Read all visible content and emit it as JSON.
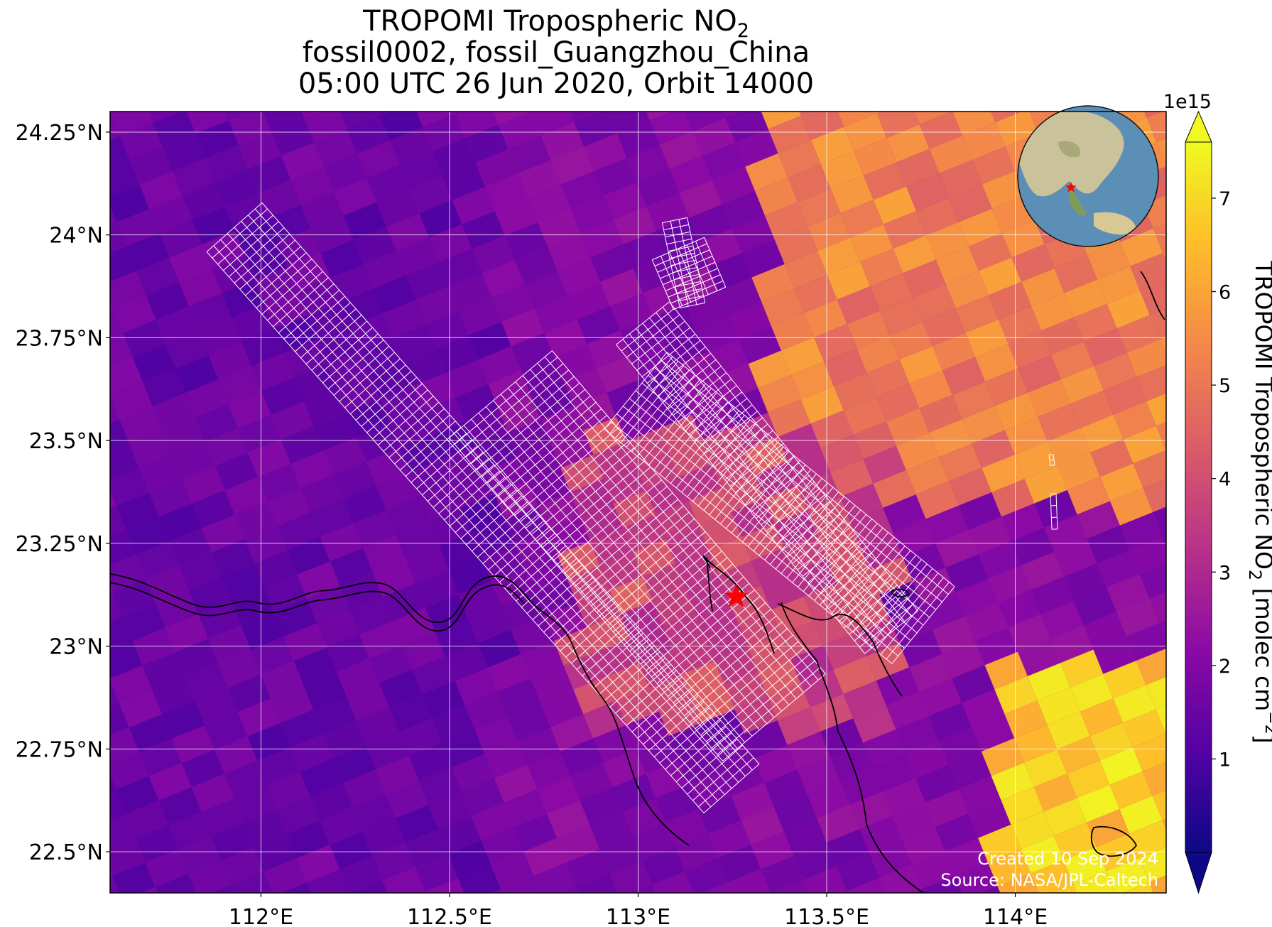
{
  "figure": {
    "title": [
      "TROPOMI Tropospheric NO",
      "fossil0002, fossil_Guangzhou_China",
      "05:00 UTC 26 Jun 2020, Orbit 14000"
    ],
    "title_subscript": "2",
    "credits": [
      "Created 10 Sep 2024",
      "Source: NASA/JPL-Caltech"
    ]
  },
  "colors": {
    "colormap": [
      "#0d0887",
      "#5302a3",
      "#8b0aa5",
      "#b83289",
      "#db5c68",
      "#f48849",
      "#febd2a",
      "#f0f921"
    ],
    "target_marker": "#ff0000",
    "grid": "#ffffff",
    "coastline": "#000000"
  },
  "chart_data": {
    "type": "heatmap",
    "projection": "plate carree",
    "xlim": [
      111.6,
      114.4
    ],
    "ylim": [
      22.4,
      24.3
    ],
    "x_ticks": [
      112,
      112.5,
      113,
      113.5,
      114
    ],
    "x_tick_labels": [
      "112°E",
      "112.5°E",
      "113°E",
      "113.5°E",
      "114°E"
    ],
    "y_ticks": [
      22.5,
      22.75,
      23,
      23.25,
      23.5,
      23.75,
      24,
      24.25
    ],
    "y_tick_labels": [
      "22.5°N",
      "22.75°N",
      "23°N",
      "23.25°N",
      "23.5°N",
      "23.75°N",
      "24°N",
      "24.25°N"
    ],
    "grid": true,
    "colorbar": {
      "label": "TROPOMI Tropospheric NO",
      "label_subscript": "2",
      "label_units": "[molec cm",
      "label_units_sup": "−2",
      "label_end": "]",
      "scale_label": "1e15",
      "vmin": 0,
      "vmax": 7.6,
      "ticks": [
        1,
        2,
        3,
        4,
        5,
        6,
        7
      ],
      "tick_labels": [
        "1",
        "2",
        "3",
        "4",
        "5",
        "6",
        "7"
      ],
      "extend": "both"
    },
    "target_location": {
      "lon": 113.26,
      "lat": 23.12
    },
    "no2_field_description_1e15": {
      "background_west": [
        1.5,
        2.5
      ],
      "urban_corridor": [
        3.0,
        4.5
      ],
      "northeast_hotspots": [
        4.5,
        6.0
      ],
      "southeast_hotspot": [
        6.0,
        7.5
      ]
    },
    "inset": "globe with target marker"
  }
}
